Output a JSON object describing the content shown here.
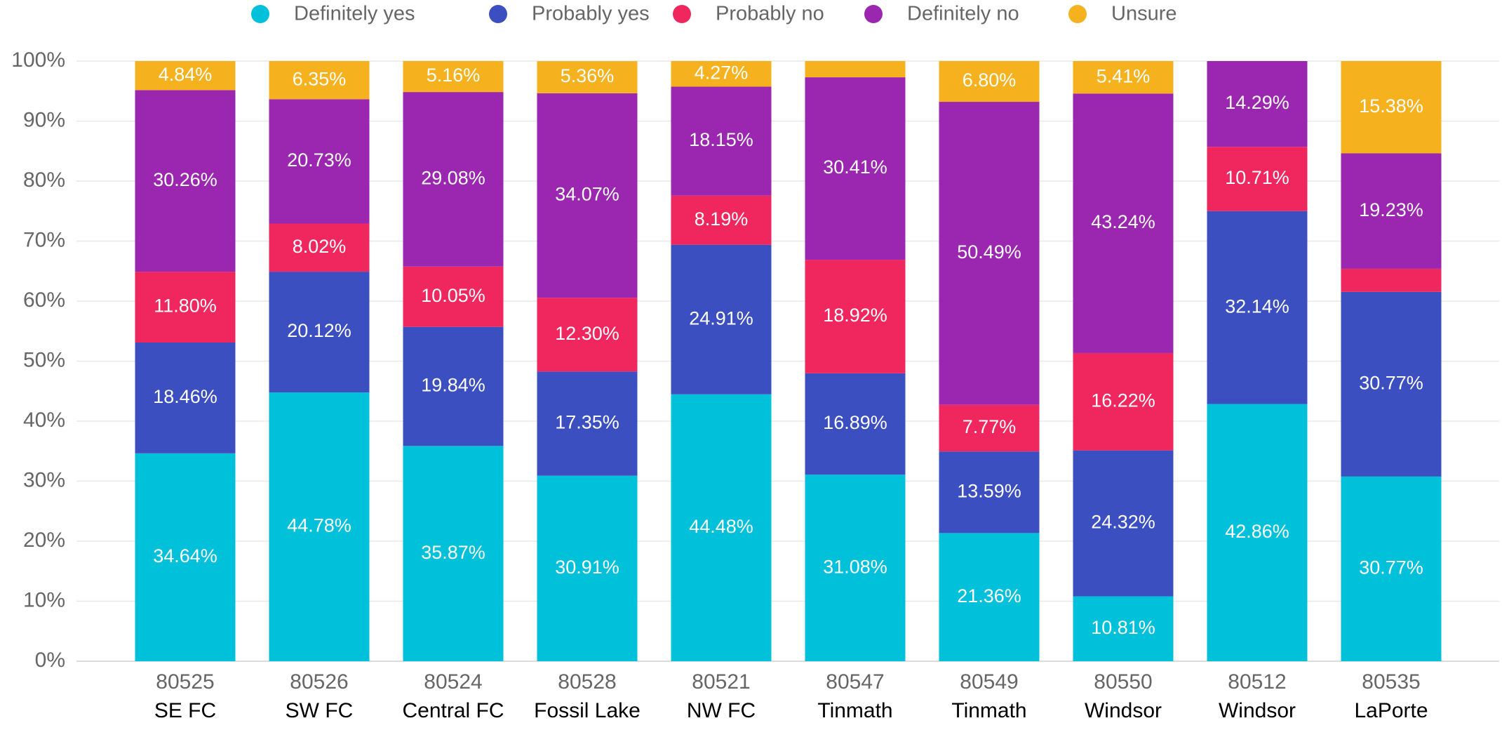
{
  "chart_data": {
    "type": "stacked_bar",
    "categories": [
      "80525",
      "80526",
      "80524",
      "80528",
      "80521",
      "80547",
      "80549",
      "80550",
      "80512",
      "80535"
    ],
    "category_groups": [
      "SE FC",
      "SW FC",
      "Central FC",
      "Fossil Lake",
      "NW FC",
      "Tinmath",
      "Tinmath",
      "Windsor",
      "Windsor",
      "LaPorte"
    ],
    "series": [
      {
        "name": "Definitely yes",
        "color": "#00c0da",
        "values": [
          34.64,
          44.78,
          35.87,
          30.91,
          44.48,
          31.08,
          21.36,
          10.81,
          42.86,
          30.77
        ],
        "value_labels": [
          "34.64%",
          "44.78%",
          "35.87%",
          "30.91%",
          "44.48%",
          "31.08%",
          "21.36%",
          "10.81%",
          "42.86%",
          "30.77%"
        ]
      },
      {
        "name": "Probably yes",
        "color": "#3b4fc0",
        "values": [
          18.46,
          20.12,
          19.84,
          17.35,
          24.91,
          16.89,
          13.59,
          24.32,
          32.14,
          30.77
        ],
        "value_labels": [
          "18.46%",
          "20.12%",
          "19.84%",
          "17.35%",
          "24.91%",
          "16.89%",
          "13.59%",
          "24.32%",
          "32.14%",
          "30.77%"
        ]
      },
      {
        "name": "Probably no",
        "color": "#f0275e",
        "values": [
          11.8,
          8.02,
          10.05,
          12.3,
          8.19,
          18.92,
          7.77,
          16.22,
          10.71,
          3.85
        ],
        "value_labels": [
          "11.80%",
          "8.02%",
          "10.05%",
          "12.30%",
          "8.19%",
          "18.92%",
          "7.77%",
          "16.22%",
          "10.71%",
          null
        ]
      },
      {
        "name": "Definitely no",
        "color": "#9b27b0",
        "values": [
          30.26,
          20.73,
          29.08,
          34.07,
          18.15,
          30.41,
          50.49,
          43.24,
          14.29,
          19.23
        ],
        "value_labels": [
          "30.26%",
          "20.73%",
          "29.08%",
          "34.07%",
          "18.15%",
          "30.41%",
          "50.49%",
          "43.24%",
          "14.29%",
          "19.23%"
        ]
      },
      {
        "name": "Unsure",
        "color": "#f5b21e",
        "values": [
          4.84,
          6.35,
          5.16,
          5.36,
          4.27,
          2.7,
          6.8,
          5.41,
          0,
          15.38
        ],
        "value_labels": [
          "4.84%",
          "6.35%",
          "5.16%",
          "5.36%",
          "4.27%",
          null,
          "6.80%",
          "5.41%",
          null,
          "15.38%"
        ]
      }
    ],
    "ylim": [
      0,
      100
    ],
    "yticks": [
      {
        "value": 0,
        "label": "0%"
      },
      {
        "value": 10,
        "label": "10%"
      },
      {
        "value": 20,
        "label": "20%"
      },
      {
        "value": 30,
        "label": "30%"
      },
      {
        "value": 40,
        "label": "40%"
      },
      {
        "value": 50,
        "label": "50%"
      },
      {
        "value": 60,
        "label": "60%"
      },
      {
        "value": 70,
        "label": "70%"
      },
      {
        "value": 80,
        "label": "80%"
      },
      {
        "value": 90,
        "label": "90%"
      },
      {
        "value": 100,
        "label": "100%"
      }
    ],
    "grid": true,
    "legend": "top"
  }
}
